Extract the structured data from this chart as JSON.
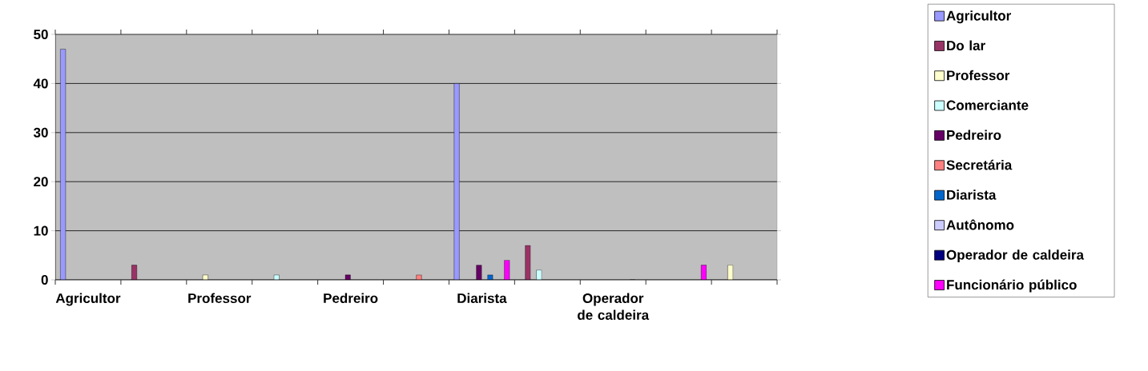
{
  "chart_data": {
    "type": "bar",
    "categories": [
      "Agricultor",
      null,
      "Professor",
      null,
      "Pedreiro",
      null,
      "Diarista",
      null,
      "Operador de caldeira",
      null,
      null
    ],
    "series": [
      {
        "name": "Agricultor",
        "color": "#9999ff",
        "values": [
          47,
          null,
          null,
          null,
          null,
          null,
          40,
          null,
          null,
          null,
          null
        ]
      },
      {
        "name": "Do lar",
        "color": "#993366",
        "values": [
          null,
          3,
          null,
          null,
          null,
          null,
          null,
          7,
          null,
          null,
          null
        ]
      },
      {
        "name": "Professor",
        "color": "#ffffcc",
        "values": [
          null,
          null,
          1,
          null,
          null,
          null,
          null,
          null,
          null,
          null,
          3
        ]
      },
      {
        "name": "Comerciante",
        "color": "#ccffff",
        "values": [
          null,
          null,
          null,
          1,
          null,
          null,
          null,
          2,
          null,
          null,
          null
        ]
      },
      {
        "name": "Pedreiro",
        "color": "#660066",
        "values": [
          null,
          null,
          null,
          null,
          1,
          null,
          3,
          null,
          null,
          null,
          null
        ]
      },
      {
        "name": "Secretária",
        "color": "#ff8080",
        "values": [
          null,
          null,
          null,
          null,
          null,
          1,
          null,
          null,
          null,
          null,
          null
        ]
      },
      {
        "name": "Diarista",
        "color": "#0066cc",
        "values": [
          null,
          null,
          null,
          null,
          null,
          null,
          1,
          null,
          null,
          null,
          null
        ]
      },
      {
        "name": "Autônomo",
        "color": "#ccccff",
        "values": [
          null,
          null,
          null,
          null,
          null,
          null,
          null,
          null,
          null,
          null,
          null
        ]
      },
      {
        "name": "Operador de caldeira",
        "color": "#000080",
        "values": [
          null,
          null,
          null,
          null,
          null,
          null,
          null,
          null,
          0,
          null,
          null
        ]
      },
      {
        "name": "Funcionário público",
        "color": "#ff00ff",
        "values": [
          null,
          null,
          null,
          null,
          null,
          null,
          4,
          null,
          null,
          3,
          null
        ]
      }
    ],
    "ylim": [
      0,
      50
    ],
    "yticks": [
      0,
      10,
      20,
      30,
      40,
      50
    ],
    "grid": "y",
    "legend": "right"
  }
}
